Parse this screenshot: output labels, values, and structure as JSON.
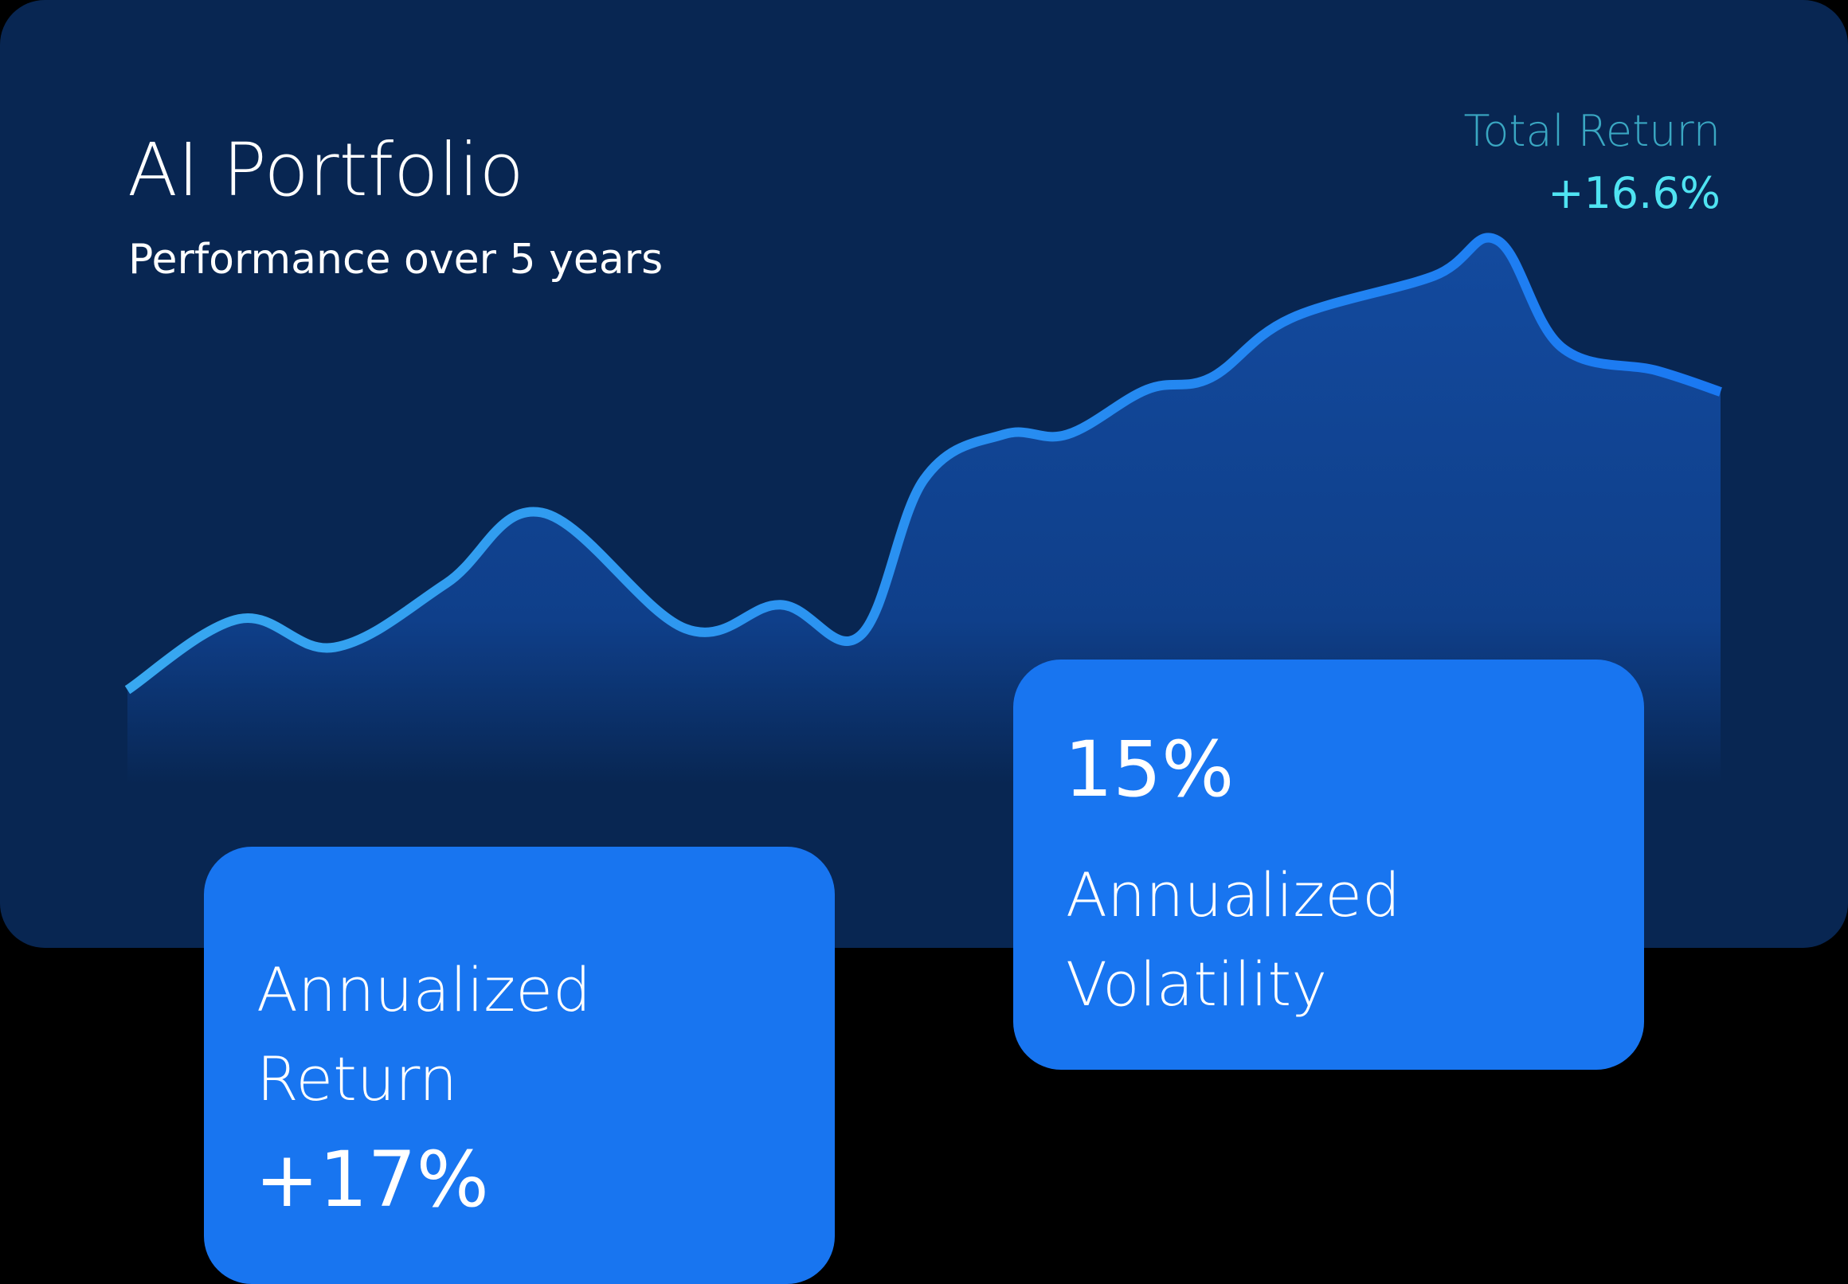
{
  "header": {
    "title": "AI Portfolio",
    "subtitle": "Performance over 5 years"
  },
  "summary": {
    "total_return_label": "Total Return",
    "total_return_value": "+16.6%"
  },
  "stats": {
    "annualized_return_label": "Annualized Return",
    "annualized_return_value": "+17%",
    "annualized_volatility_value": "15%",
    "annualized_volatility_label": "Annualized Volatility"
  },
  "colors": {
    "card_background": "#082652",
    "line_start": "#38a8f0",
    "line_end": "#1a78f2",
    "area_top": "#134a9e",
    "accent_card": "#1875f0",
    "total_return_label": "#3aa7c2",
    "total_return_value": "#4fe3f2"
  },
  "chart_data": {
    "type": "area",
    "title": "",
    "xlabel": "",
    "ylabel": "",
    "x": [
      0,
      0.07,
      0.13,
      0.2,
      0.26,
      0.35,
      0.41,
      0.46,
      0.5,
      0.55,
      0.59,
      0.64,
      0.68,
      0.73,
      0.82,
      0.86,
      0.9,
      0.96,
      1.0
    ],
    "values": [
      4.0,
      7.0,
      5.8,
      8.5,
      11.5,
      6.6,
      7.6,
      6.3,
      12.9,
      14.8,
      14.8,
      16.7,
      17.2,
      19.7,
      21.5,
      23.0,
      18.5,
      17.5,
      16.6
    ],
    "xlim": [
      0,
      1
    ],
    "ylim": [
      0,
      24
    ],
    "grid": false,
    "legend": "none"
  }
}
